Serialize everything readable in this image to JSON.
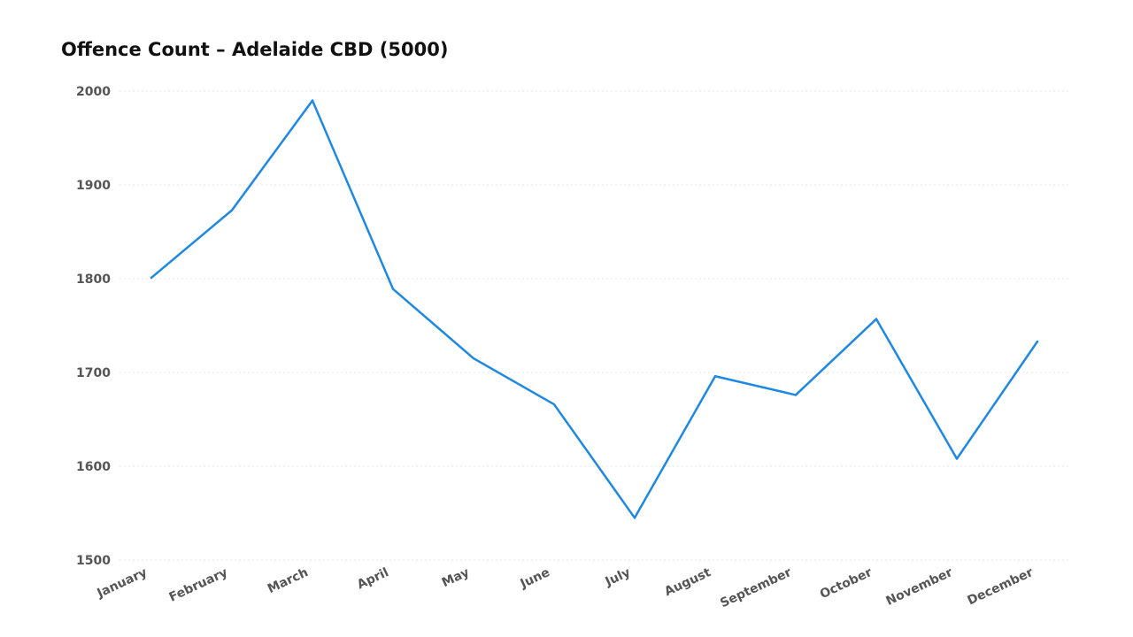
{
  "chart_data": {
    "type": "line",
    "title": "Offence Count – Adelaide CBD (5000)",
    "xlabel": "",
    "ylabel": "",
    "categories": [
      "January",
      "February",
      "March",
      "April",
      "May",
      "June",
      "July",
      "August",
      "September",
      "October",
      "November",
      "December"
    ],
    "series": [
      {
        "values": [
          1801,
          1873,
          1990,
          1789,
          1715,
          1666,
          1545,
          1696,
          1676,
          1757,
          1608,
          1733
        ],
        "color": "#1E88E5"
      }
    ],
    "ylim": [
      1500,
      2000
    ],
    "yticks": [
      "1500",
      "1600",
      "1700",
      "1800",
      "1900",
      "2000"
    ],
    "grid": true,
    "legend": "none"
  }
}
